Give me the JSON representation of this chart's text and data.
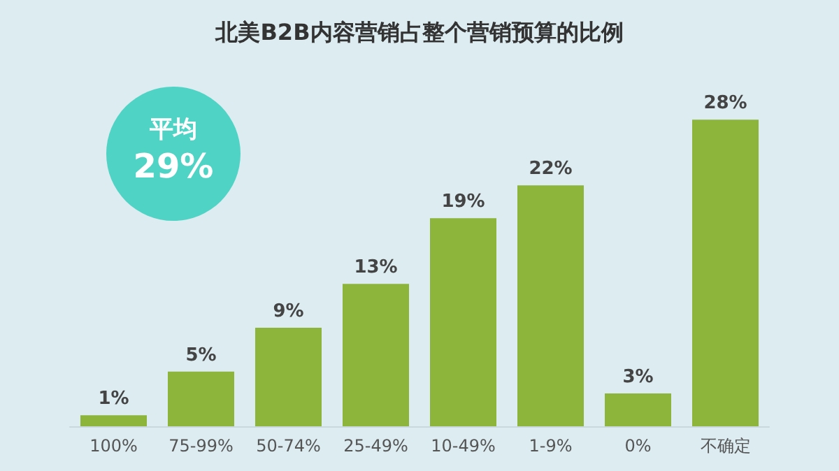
{
  "chart_data": {
    "type": "bar",
    "title": "北美B2B内容营销占整个营销预算的比例",
    "categories": [
      "100%",
      "75-99%",
      "50-74%",
      "25-49%",
      "10-49%",
      "1-9%",
      "0%",
      "不确定"
    ],
    "values": [
      1,
      5,
      9,
      13,
      19,
      22,
      3,
      28
    ],
    "value_labels": [
      "1%",
      "5%",
      "9%",
      "13%",
      "19%",
      "22%",
      "3%",
      "28%"
    ],
    "color": "#8db53c",
    "annotations": [
      "平均",
      "29%"
    ],
    "grid": false
  }
}
